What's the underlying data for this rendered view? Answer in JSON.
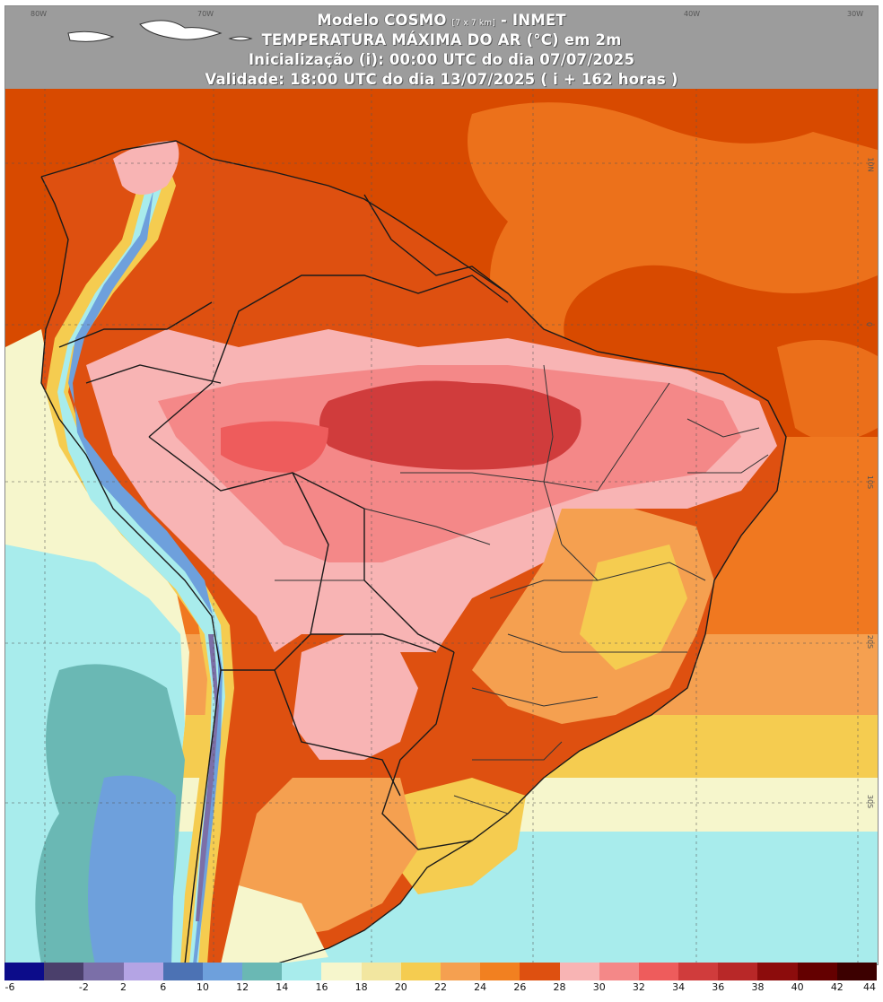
{
  "header": {
    "line1_main": "Modelo COSMO",
    "line1_small": "[7 x 7 km]",
    "line1_suffix": "- INMET",
    "line2": "TEMPERATURA MÁXIMA DO AR (°C) em 2m",
    "line3": "Inicialização (i): 00:00 UTC do dia 07/07/2025",
    "line4": "Validade: 18:00 UTC do dia 13/07/2025 ( i + 162 horas )"
  },
  "axis_ticks": {
    "top": [
      "80W",
      "70W",
      "40W",
      "30W"
    ],
    "right": [
      "10N",
      "0",
      "10S",
      "20S",
      "30S"
    ]
  },
  "legend": {
    "labels": [
      "-6",
      "-2",
      "2",
      "6",
      "10",
      "12",
      "14",
      "16",
      "18",
      "20",
      "22",
      "24",
      "26",
      "28",
      "30",
      "32",
      "34",
      "36",
      "38",
      "40",
      "42",
      "44"
    ],
    "colors": [
      "#0c0c8a",
      "#4a3f6b",
      "#7b6fa8",
      "#b4a4e4",
      "#4c72b4",
      "#6ea0dc",
      "#6ab8b4",
      "#a8ecec",
      "#f6f6cc",
      "#f2e6a0",
      "#f5cc50",
      "#f5a050",
      "#f28020",
      "#de5010",
      "#f8b4b4",
      "#f48888",
      "#ee5c5c",
      "#d03c3c",
      "#b82828",
      "#8c0c0c",
      "#640000",
      "#3c0000"
    ]
  },
  "map": {
    "variable": "temperature",
    "colors": {
      "ocean_north": "#d84a00",
      "ocean_mid": "#f07820",
      "ocean_south_warm": "#f5cc50",
      "ocean_south_cool": "#a8ecec",
      "land_hot": "#f48888",
      "land_hottest": "#d03c3c",
      "andes_cold": "#6ea0dc"
    }
  }
}
